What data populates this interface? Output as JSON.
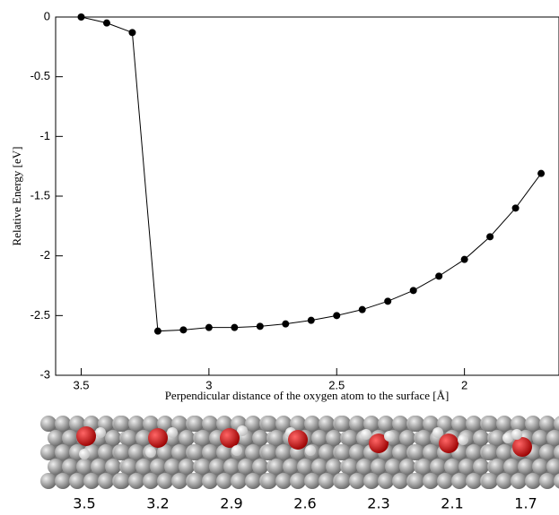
{
  "chart_data": {
    "type": "line",
    "x_label": "Perpendicular distance of the oxygen atom to the surface [Å]",
    "y_label": "Relative Energy [eV]",
    "x": [
      3.5,
      3.4,
      3.3,
      3.2,
      3.1,
      3.0,
      2.9,
      2.8,
      2.7,
      2.6,
      2.5,
      2.4,
      2.3,
      2.2,
      2.1,
      2.0,
      1.9,
      1.8,
      1.7
    ],
    "series": [
      {
        "color": "#000000",
        "values": [
          0,
          -0.05,
          -0.13,
          -2.63,
          -2.62,
          -2.6,
          -2.6,
          -2.59,
          -2.57,
          -2.54,
          -2.5,
          -2.45,
          -2.38,
          -2.29,
          -2.17,
          -2.03,
          -1.84,
          -1.6,
          -1.31
        ]
      }
    ],
    "xlim": [
      3.6,
      1.63
    ],
    "xticks": [
      3.5,
      3,
      2.5,
      2
    ],
    "ylim": [
      -3,
      0
    ],
    "yticks": [
      0,
      -0.5,
      -1,
      -1.5,
      -2,
      -2.5,
      -3
    ],
    "snapshots": [
      "3.5",
      "3.2",
      "2.9",
      "2.6",
      "2.3",
      "2.1",
      "1.7"
    ]
  }
}
